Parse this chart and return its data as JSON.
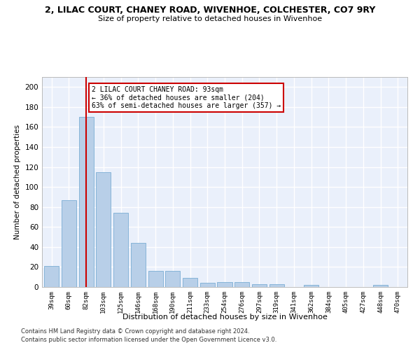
{
  "title": "2, LILAC COURT, CHANEY ROAD, WIVENHOE, COLCHESTER, CO7 9RY",
  "subtitle": "Size of property relative to detached houses in Wivenhoe",
  "xlabel": "Distribution of detached houses by size in Wivenhoe",
  "ylabel": "Number of detached properties",
  "bar_color": "#b8cfe8",
  "bar_edge_color": "#7aadd4",
  "bar_categories": [
    "39sqm",
    "60sqm",
    "82sqm",
    "103sqm",
    "125sqm",
    "146sqm",
    "168sqm",
    "190sqm",
    "211sqm",
    "233sqm",
    "254sqm",
    "276sqm",
    "297sqm",
    "319sqm",
    "341sqm",
    "362sqm",
    "384sqm",
    "405sqm",
    "427sqm",
    "448sqm",
    "470sqm"
  ],
  "bar_values": [
    21,
    87,
    170,
    115,
    74,
    44,
    16,
    16,
    9,
    4,
    5,
    5,
    3,
    3,
    0,
    2,
    0,
    0,
    0,
    2,
    0
  ],
  "vline_x": 2.0,
  "vline_color": "#cc0000",
  "annotation_text": "2 LILAC COURT CHANEY ROAD: 93sqm\n← 36% of detached houses are smaller (204)\n63% of semi-detached houses are larger (357) →",
  "annotation_box_color": "#ffffff",
  "annotation_box_edge": "#cc0000",
  "ylim": [
    0,
    210
  ],
  "yticks": [
    0,
    20,
    40,
    60,
    80,
    100,
    120,
    140,
    160,
    180,
    200
  ],
  "background_color": "#eaf0fb",
  "grid_color": "#ffffff",
  "footer_line1": "Contains HM Land Registry data © Crown copyright and database right 2024.",
  "footer_line2": "Contains public sector information licensed under the Open Government Licence v3.0."
}
